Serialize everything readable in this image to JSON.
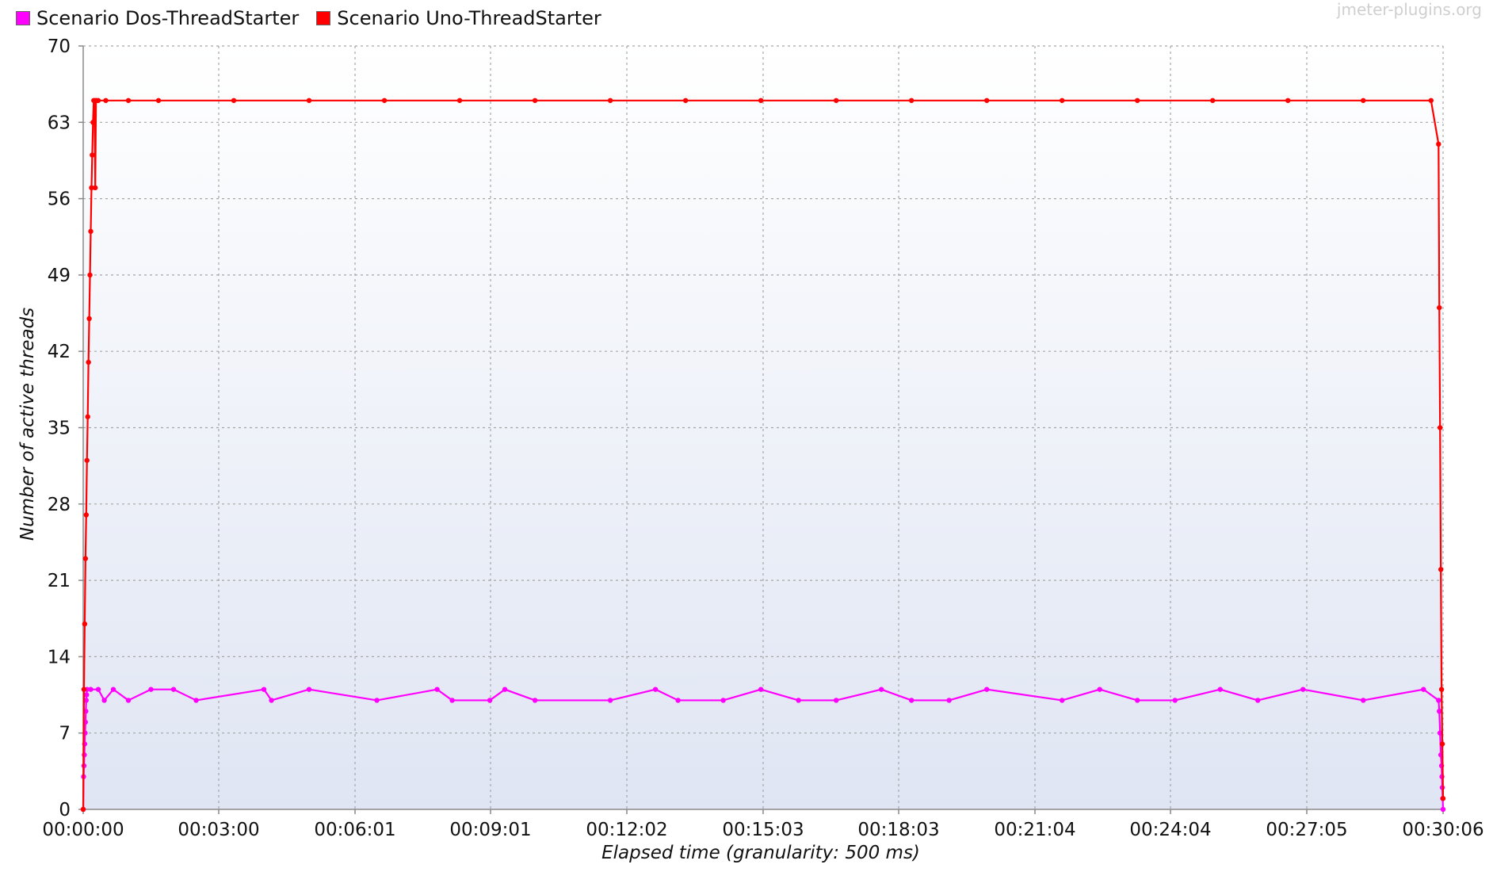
{
  "watermark": "jmeter-plugins.org",
  "colors": {
    "series_dos": "#ff00ff",
    "series_uno": "#ff0000",
    "plot_bg_top": "#ffffff",
    "plot_bg_bottom": "#dfe5f3",
    "grid": "#a0a0a0"
  },
  "chart_data": {
    "type": "line",
    "xlabel": "Elapsed time (granularity: 500 ms)",
    "ylabel": "Number of active threads",
    "xlim": [
      0,
      1806
    ],
    "ylim": [
      0,
      70
    ],
    "y_ticks": [
      0,
      7,
      14,
      21,
      28,
      35,
      42,
      49,
      56,
      63,
      70
    ],
    "x_ticks": [
      {
        "value": 0,
        "label": "00:00:00"
      },
      {
        "value": 180,
        "label": "00:03:00"
      },
      {
        "value": 361,
        "label": "00:06:01"
      },
      {
        "value": 541,
        "label": "00:09:01"
      },
      {
        "value": 722,
        "label": "00:12:02"
      },
      {
        "value": 903,
        "label": "00:15:03"
      },
      {
        "value": 1083,
        "label": "00:18:03"
      },
      {
        "value": 1264,
        "label": "00:21:04"
      },
      {
        "value": 1444,
        "label": "00:24:04"
      },
      {
        "value": 1625,
        "label": "00:27:05"
      },
      {
        "value": 1806,
        "label": "00:30:06"
      }
    ],
    "grid": true,
    "legend_position": "top-left",
    "series": [
      {
        "name": "Scenario Dos-ThreadStarter",
        "color": "#ff00ff",
        "x": [
          0,
          0.5,
          1,
          1.5,
          2,
          2.5,
          3,
          3.5,
          4,
          4.5,
          5,
          10,
          20,
          28,
          40,
          60,
          90,
          120,
          150,
          240,
          250,
          300,
          390,
          470,
          490,
          540,
          560,
          600,
          700,
          760,
          790,
          850,
          900,
          950,
          1000,
          1060,
          1100,
          1150,
          1200,
          1300,
          1350,
          1400,
          1450,
          1510,
          1560,
          1620,
          1700,
          1780,
          1800,
          1801,
          1802,
          1803,
          1804,
          1804.5,
          1805,
          1805.5,
          1806
        ],
        "y": [
          0,
          3,
          4,
          5,
          6,
          7,
          8,
          9,
          10,
          10.5,
          11,
          11,
          11,
          10,
          11,
          10,
          11,
          11,
          10,
          11,
          10,
          11,
          10,
          11,
          10,
          10,
          11,
          10,
          10,
          11,
          10,
          10,
          11,
          10,
          10,
          11,
          10,
          10,
          11,
          10,
          11,
          10,
          10,
          11,
          10,
          11,
          10,
          11,
          10,
          9,
          7,
          5,
          4,
          3,
          2,
          1,
          0
        ]
      },
      {
        "name": "Scenario Uno-ThreadStarter",
        "color": "#ff0000",
        "x": [
          0,
          1,
          2,
          3,
          4,
          5,
          6,
          7,
          8,
          9,
          10,
          11,
          12,
          13,
          14,
          15,
          16,
          17,
          18,
          20,
          30,
          60,
          100,
          200,
          300,
          400,
          500,
          600,
          700,
          800,
          900,
          1000,
          1100,
          1200,
          1300,
          1400,
          1500,
          1600,
          1700,
          1790,
          1800,
          1801,
          1802,
          1803,
          1804,
          1805,
          1806
        ],
        "y": [
          0,
          11,
          17,
          23,
          27,
          32,
          36,
          41,
          45,
          49,
          53,
          57,
          60,
          63,
          65,
          65,
          57,
          65,
          65,
          65,
          65,
          65,
          65,
          65,
          65,
          65,
          65,
          65,
          65,
          65,
          65,
          65,
          65,
          65,
          65,
          65,
          65,
          65,
          65,
          65,
          61,
          46,
          35,
          22,
          11,
          6,
          1
        ]
      }
    ]
  }
}
